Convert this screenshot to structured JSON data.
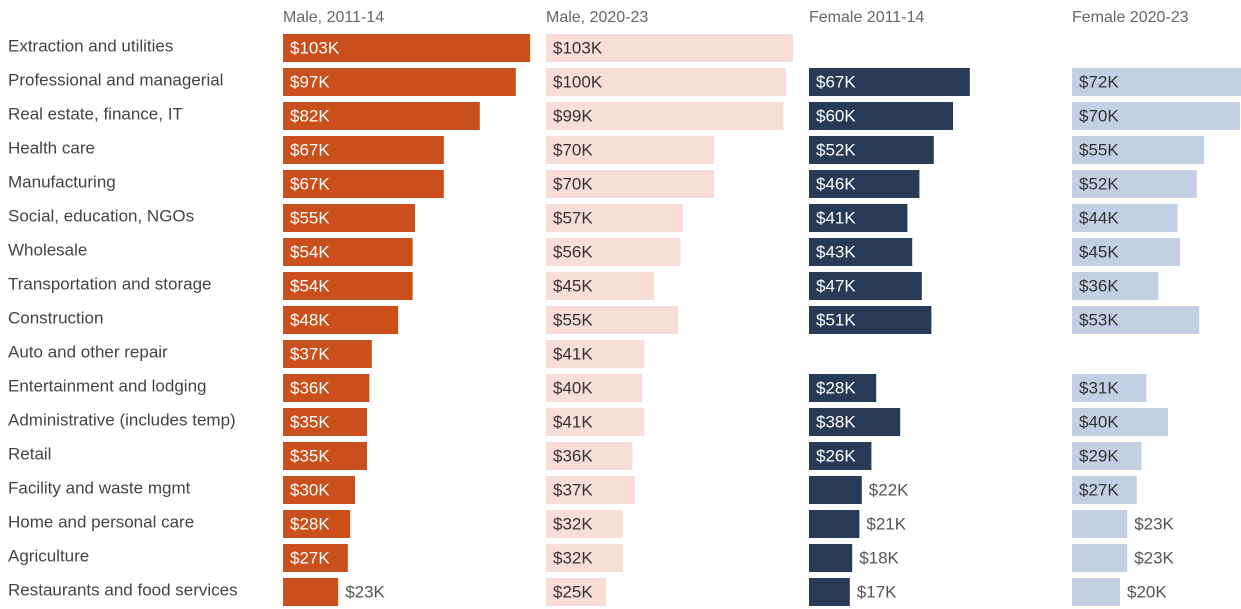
{
  "chart_data": {
    "type": "bar",
    "orientation": "horizontal",
    "categories": [
      "Extraction and utilities",
      "Professional and managerial",
      "Real estate, finance, IT",
      "Health care",
      "Manufacturing",
      "Social, education, NGOs",
      "Wholesale",
      "Transportation and storage",
      "Construction",
      "Auto and other repair",
      "Entertainment and lodging",
      "Administrative (includes temp)",
      "Retail",
      "Facility and waste mgmt",
      "Home and personal care",
      "Agriculture",
      "Restaurants and food services"
    ],
    "xlim": [
      0,
      105000
    ],
    "series": [
      {
        "name": "Male, 2011-14",
        "color": "#c9501c",
        "text_color": "#ffffff",
        "values": [
          103000,
          97000,
          82000,
          67000,
          67000,
          55000,
          54000,
          54000,
          48000,
          37000,
          36000,
          35000,
          35000,
          30000,
          28000,
          27000,
          23000
        ],
        "value_labels": [
          "$103K",
          "$97K",
          "$82K",
          "$67K",
          "$67K",
          "$55K",
          "$54K",
          "$54K",
          "$48K",
          "$37K",
          "$36K",
          "$35K",
          "$35K",
          "$30K",
          "$28K",
          "$27K",
          "$23K"
        ]
      },
      {
        "name": "Male, 2020-23",
        "color": "#f9ded7",
        "text_color": "#333333",
        "values": [
          103000,
          100000,
          99000,
          70000,
          70000,
          57000,
          56000,
          45000,
          55000,
          41000,
          40000,
          41000,
          36000,
          37000,
          32000,
          32000,
          25000
        ],
        "value_labels": [
          "$103K",
          "$100K",
          "$99K",
          "$70K",
          "$70K",
          "$57K",
          "$56K",
          "$45K",
          "$55K",
          "$41K",
          "$40K",
          "$41K",
          "$36K",
          "$37K",
          "$32K",
          "$32K",
          "$25K"
        ]
      },
      {
        "name": "Female 2011-14",
        "color": "#283a56",
        "text_color": "#ffffff",
        "values": [
          null,
          67000,
          60000,
          52000,
          46000,
          41000,
          43000,
          47000,
          51000,
          null,
          28000,
          38000,
          26000,
          22000,
          21000,
          18000,
          17000
        ],
        "value_labels": [
          null,
          "$67K",
          "$60K",
          "$52K",
          "$46K",
          "$41K",
          "$43K",
          "$47K",
          "$51K",
          null,
          "$28K",
          "$38K",
          "$26K",
          "$22K",
          "$21K",
          "$18K",
          "$17K"
        ]
      },
      {
        "name": "Female 2020-23",
        "color": "#c3d0e3",
        "text_color": "#333333",
        "values": [
          null,
          72000,
          70000,
          55000,
          52000,
          44000,
          45000,
          36000,
          53000,
          null,
          31000,
          40000,
          29000,
          27000,
          23000,
          23000,
          20000
        ],
        "value_labels": [
          null,
          "$72K",
          "$70K",
          "$55K",
          "$52K",
          "$44K",
          "$45K",
          "$36K",
          "$53K",
          null,
          "$31K",
          "$40K",
          "$29K",
          "$27K",
          "$23K",
          "$23K",
          "$20K"
        ]
      }
    ]
  }
}
